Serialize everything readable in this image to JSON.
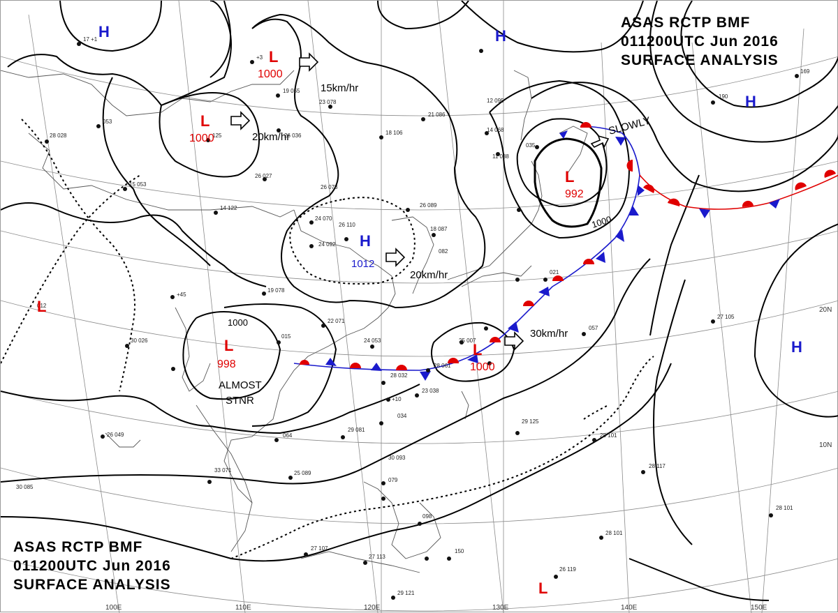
{
  "chart": {
    "header_top": {
      "line1": "ASAS     RCTP     BMF",
      "line2": "011200UTC     Jun     2016",
      "line3": "SURFACE  ANALYSIS"
    },
    "header_bottom": {
      "line1": "ASAS     RCTP     BMF",
      "line2": "011200UTC     Jun     2016",
      "line3": "SURFACE  ANALYSIS"
    }
  },
  "pressure_centers": [
    {
      "type": "H",
      "value": ""
    },
    {
      "type": "H",
      "value": ""
    },
    {
      "type": "H",
      "value": ""
    },
    {
      "type": "H",
      "value": ""
    },
    {
      "type": "H",
      "value": "1012"
    },
    {
      "type": "L",
      "value": "1000"
    },
    {
      "type": "L",
      "value": "1000"
    },
    {
      "type": "L",
      "value": "992"
    },
    {
      "type": "L",
      "value": "998"
    },
    {
      "type": "L",
      "value": "1000"
    },
    {
      "type": "L",
      "value": ""
    },
    {
      "type": "L",
      "value": ""
    }
  ],
  "isobar_labels": [
    "1000",
    "1000"
  ],
  "movement_labels": [
    "15km/hr",
    "20km/hr",
    "20km/hr",
    "30km/hr",
    "SLOWLY",
    "ALMOST",
    "STNR"
  ],
  "graticule": {
    "longitudes": [
      "100E",
      "110E",
      "120E",
      "130E",
      "140E",
      "150E"
    ],
    "latitudes": [
      "20N",
      "10N"
    ]
  },
  "colors": {
    "low": "#e00000",
    "high": "#1a1acc",
    "isobar": "#000000",
    "warm_front": "#e00000",
    "cold_front": "#1a1acc",
    "coast": "#555555",
    "grid": "#888888"
  }
}
